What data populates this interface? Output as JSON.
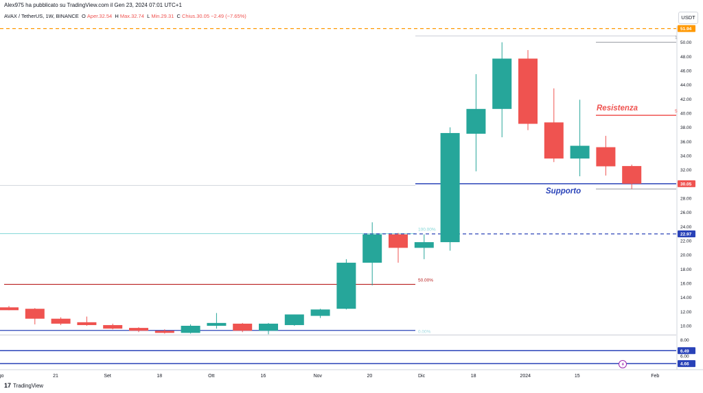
{
  "header": {
    "published": "Alex975 ha pubblicato su TradingView.com il Gen 23, 2024 07:01 UTC+1",
    "symbol": "AVAX / TetherUS, 1W, BINANCE",
    "open_label": "O",
    "open_text": "Aper.32.54",
    "high_label": "H",
    "high_text": "Max.32.74",
    "low_label": "L",
    "low_text": "Min.29.31",
    "close_label": "C",
    "close_text": "Chius.30.05",
    "change_text": "−2.49 (−7.65%)"
  },
  "currency_button": "USDT",
  "footer": {
    "brand": "TradingView"
  },
  "colors": {
    "up": "#26a69a",
    "down": "#ef5350",
    "support": "#2942b8",
    "resistance": "#ef5350",
    "orange": "#ff9800"
  },
  "chart_data": {
    "type": "candlestick",
    "ylim": [
      4,
      53
    ],
    "y_ticks": [
      8,
      10,
      12,
      14,
      16,
      18,
      20,
      22,
      24,
      26,
      28,
      30,
      32,
      34,
      36,
      38,
      40,
      42,
      44,
      46,
      48,
      50
    ],
    "y_tick_labels": [
      "8.00",
      "10.00",
      "12.00",
      "14.00",
      "16.00",
      "18.00",
      "20.00",
      "22.00",
      "24.00",
      "26.00",
      "28.00",
      "30.00",
      "32.00",
      "34.00",
      "36.00",
      "38.00",
      "40.00",
      "42.00",
      "44.00",
      "46.00",
      "48.00",
      "50.00"
    ],
    "x_labels": [
      {
        "label": "go",
        "week": -0.3
      },
      {
        "label": "21",
        "week": 1.8
      },
      {
        "label": "Set",
        "week": 3.8
      },
      {
        "label": "18",
        "week": 5.8
      },
      {
        "label": "Ott",
        "week": 7.8
      },
      {
        "label": "16",
        "week": 9.8
      },
      {
        "label": "Nov",
        "week": 11.9
      },
      {
        "label": "20",
        "week": 13.9
      },
      {
        "label": "Dic",
        "week": 15.9
      },
      {
        "label": "18",
        "week": 17.9
      },
      {
        "label": "2024",
        "week": 19.9
      },
      {
        "label": "15",
        "week": 21.9
      },
      {
        "label": "Feb",
        "week": 24.9
      }
    ],
    "candles": [
      {
        "o": 12.6,
        "h": 12.8,
        "l": 12.2,
        "c": 12.2
      },
      {
        "o": 12.4,
        "h": 12.5,
        "l": 10.2,
        "c": 11.0
      },
      {
        "o": 11.0,
        "h": 11.2,
        "l": 10.1,
        "c": 10.3
      },
      {
        "o": 10.5,
        "h": 11.3,
        "l": 10.0,
        "c": 10.1
      },
      {
        "o": 10.1,
        "h": 10.3,
        "l": 9.5,
        "c": 9.6
      },
      {
        "o": 9.7,
        "h": 9.8,
        "l": 9.1,
        "c": 9.3
      },
      {
        "o": 9.3,
        "h": 9.5,
        "l": 8.9,
        "c": 9.0
      },
      {
        "o": 9.0,
        "h": 10.2,
        "l": 8.9,
        "c": 10.0
      },
      {
        "o": 10.0,
        "h": 11.8,
        "l": 9.6,
        "c": 10.4
      },
      {
        "o": 10.3,
        "h": 10.4,
        "l": 9.1,
        "c": 9.3
      },
      {
        "o": 9.3,
        "h": 10.4,
        "l": 8.8,
        "c": 10.3
      },
      {
        "o": 10.1,
        "h": 11.6,
        "l": 10.0,
        "c": 11.6
      },
      {
        "o": 11.4,
        "h": 12.4,
        "l": 11.1,
        "c": 12.3
      },
      {
        "o": 12.4,
        "h": 19.4,
        "l": 12.3,
        "c": 18.9
      },
      {
        "o": 18.9,
        "h": 24.6,
        "l": 15.7,
        "c": 22.9
      },
      {
        "o": 22.9,
        "h": 23.1,
        "l": 18.9,
        "c": 21.0
      },
      {
        "o": 21.0,
        "h": 22.9,
        "l": 19.4,
        "c": 21.8
      },
      {
        "o": 21.8,
        "h": 38.0,
        "l": 20.6,
        "c": 37.2
      },
      {
        "o": 37.1,
        "h": 45.5,
        "l": 31.8,
        "c": 40.6
      },
      {
        "o": 40.6,
        "h": 50.0,
        "l": 36.6,
        "c": 47.7
      },
      {
        "o": 47.7,
        "h": 48.9,
        "l": 37.6,
        "c": 38.5
      },
      {
        "o": 38.7,
        "h": 43.5,
        "l": 33.1,
        "c": 33.6
      },
      {
        "o": 33.6,
        "h": 41.9,
        "l": 31.1,
        "c": 35.4
      },
      {
        "o": 35.2,
        "h": 36.8,
        "l": 31.2,
        "c": 32.5
      },
      {
        "o": 32.54,
        "h": 32.74,
        "l": 29.31,
        "c": 30.05
      }
    ],
    "annotations": {
      "resistenza": {
        "text": "Resistenza",
        "y": 39.7
      },
      "supporto": {
        "text": "Supporto",
        "y": 30.05
      },
      "fib_100": {
        "text": "100.00%",
        "y": 23.0
      },
      "fib_50": {
        "text": "50.00%",
        "y": 15.85
      },
      "fib_0": {
        "text": "0.00%",
        "y": 8.7
      },
      "resistance_marker": "5",
      "top_marker": "1"
    },
    "price_labels": [
      {
        "text": "51.94",
        "y": 51.94,
        "color": "#ff9800"
      },
      {
        "text": "30.05",
        "y": 30.05,
        "color": "#ef5350"
      },
      {
        "text": "22.97",
        "y": 22.97,
        "color": "#2942b8"
      },
      {
        "text": "6.49",
        "y": 6.49,
        "color": "#2942b8"
      },
      {
        "text": "4.66",
        "y": 4.66,
        "color": "#2942b8"
      }
    ],
    "grid": false,
    "legend": "none"
  }
}
